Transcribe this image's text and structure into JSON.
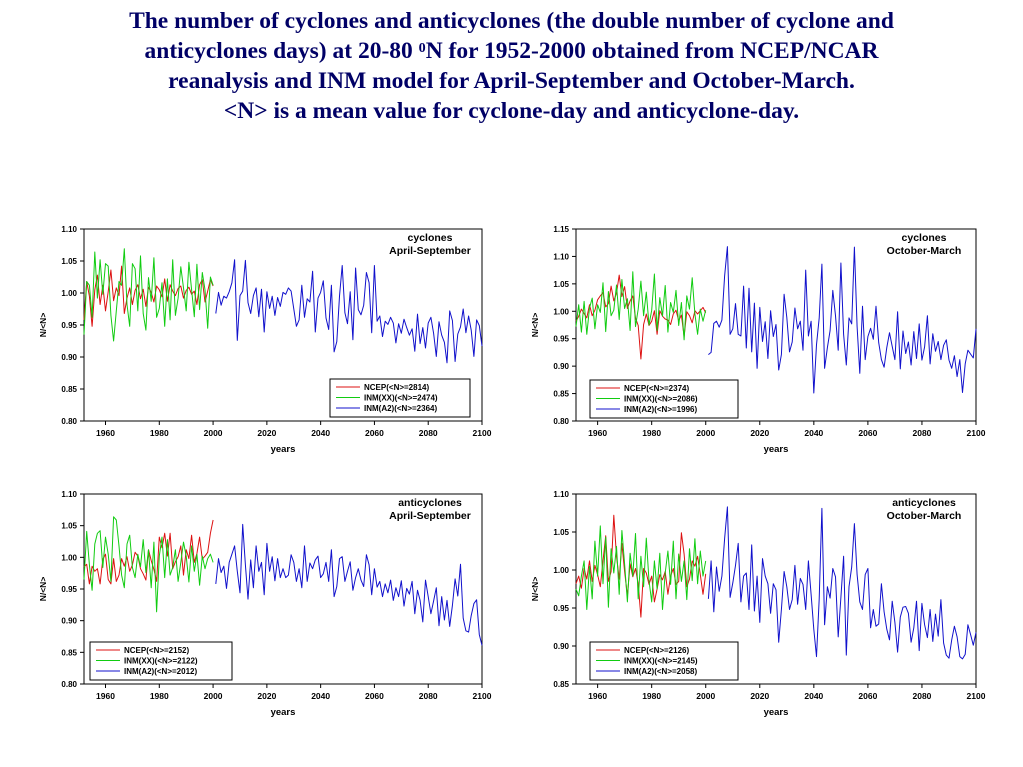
{
  "title": {
    "line1": "The number of cyclones and anticyclones (the double number of cyclone and",
    "line2_pre": "anticyclones days) at 20-80 ",
    "line2_sup": "0",
    "line2_post": "N for 1952-2000 obtained from NCEP/NCAR",
    "line3": "reanalysis and INM model for April-September and October-March.",
    "line4": "<N> is a mean value for cyclone-day and anticyclone-day."
  },
  "colors": {
    "ncep": "#dd1111",
    "inm_xx": "#11cc11",
    "inm_a2": "#1111cc",
    "title": "#000066"
  },
  "chart_data": [
    {
      "type": "line",
      "title": [
        "cyclones",
        "April-September"
      ],
      "xlabel": "years",
      "ylabel": "N/<N>",
      "xlim": [
        1952,
        2100
      ],
      "ylim": [
        0.8,
        1.1
      ],
      "xticks": [
        1960,
        1980,
        2000,
        2020,
        2040,
        2060,
        2080,
        2100
      ],
      "yticks": [
        "0.80",
        "0.85",
        "0.90",
        "0.95",
        "1.00",
        "1.05",
        "1.10"
      ],
      "grid": false,
      "legend_position": "bottom-right",
      "series": [
        {
          "name": "NCEP(<N>=2814)",
          "color_key": "ncep",
          "x_start": 1952,
          "values": [
            0.958,
            1.018,
            0.995,
            0.948,
            1.005,
            1.028,
            0.982,
            1.012,
            0.972,
            1.002,
            1.036,
            0.988,
            1.008,
            0.996,
            1.042,
            0.968,
            0.992,
            1.008,
            0.982,
            1.004,
            1.013,
            0.991,
            1.006,
            0.979,
            1.009,
            1.001,
            0.986,
            1.011,
            1.005,
            0.994,
            1.022,
            0.987,
            1.013,
            1.003,
            0.996,
            1.007,
            1.011,
            0.992,
            1.004,
            1.009,
            0.998,
            1.003,
            0.982,
            1.013,
            1.021,
            0.986,
            1.003,
            1.021,
            1.011
          ]
        },
        {
          "name": "INM(XX)(<N>=2474)",
          "color_key": "inm_xx",
          "x_start": 1952,
          "values": [
            0.935,
            1.018,
            1.012,
            0.962,
            1.064,
            0.992,
            1.052,
            0.998,
            1.046,
            1.042,
            0.965,
            0.925,
            0.972,
            1.018,
            1.012,
            1.069,
            0.982,
            0.948,
            1.046,
            1.038,
            0.972,
            1.058,
            0.968,
            0.942,
            1.024,
            0.987,
            1.055,
            0.962,
            0.976,
            1.016,
            0.948,
            1.022,
            0.958,
            1.052,
            0.965,
            0.992,
            1.041,
            1.008,
            0.972,
            1.048,
            1.005,
            0.963,
            1.045,
            0.974,
            1.032,
            1.005,
            0.945,
            1.025,
            1.012
          ]
        },
        {
          "name": "INM(A2)(<N>=2364)",
          "color_key": "inm_a2",
          "x_start": 2001,
          "values": [
            0.968,
            1.001,
            0.981,
            0.995,
            0.992,
            1.002,
            1.016,
            1.052,
            0.926,
            0.996,
            1.003,
            1.051,
            0.985,
            0.968,
            0.996,
            1.008,
            0.963,
            1.006,
            0.939,
            1.002,
            0.976,
            0.995,
            0.965,
            0.993,
            0.979,
            1.001,
            0.998,
            1.008,
            1.003,
            0.975,
            0.948,
            0.958,
            1.012,
            0.962,
            0.991,
            0.986,
            1.034,
            0.939,
            0.992,
            1.001,
            1.019,
            0.961,
            0.943,
            1.012,
            0.908,
            0.924,
            0.995,
            1.043,
            0.969,
            0.952,
            1.002,
            0.927,
            1.039,
            0.974,
            0.966,
            0.981,
            1.032,
            1.016,
            0.938,
            1.043,
            0.956,
            0.964,
            0.932,
            0.956,
            0.951,
            0.962,
            0.953,
            0.922,
            0.952,
            0.937,
            0.959,
            0.946,
            0.934,
            0.944,
            0.909,
            0.967,
            0.921,
            0.946,
            0.914,
            0.953,
            0.962,
            0.937,
            0.901,
            0.955,
            0.934,
            0.923,
            0.891,
            0.972,
            0.957,
            0.893,
            0.936,
            0.947,
            0.975,
            0.938,
            0.964,
            0.942,
            0.901,
            0.958,
            0.949,
            0.917
          ]
        }
      ]
    },
    {
      "type": "line",
      "title": [
        "cyclones",
        "October-March"
      ],
      "xlabel": "years",
      "ylabel": "N/<N>",
      "xlim": [
        1952,
        2100
      ],
      "ylim": [
        0.8,
        1.15
      ],
      "xticks": [
        1960,
        1980,
        2000,
        2020,
        2040,
        2060,
        2080,
        2100
      ],
      "yticks": [
        "0.80",
        "0.85",
        "0.90",
        "0.95",
        "1.00",
        "1.05",
        "1.10",
        "1.15"
      ],
      "grid": false,
      "legend_position": "bottom-left",
      "series": [
        {
          "name": "NCEP(<N>=2374)",
          "color_key": "ncep",
          "x_start": 1952,
          "values": [
            0.982,
            0.991,
            1.004,
            0.996,
            0.988,
            1.012,
            0.992,
            1.002,
            1.021,
            1.028,
            1.034,
            1.008,
            1.014,
            1.046,
            1.019,
            1.033,
            1.066,
            1.027,
            1.045,
            1.005,
            1.019,
            1.028,
            0.988,
            0.974,
            0.913,
            0.976,
            0.995,
            0.974,
            0.982,
            1.001,
            0.958,
            1.001,
            0.991,
            0.986,
            0.984,
            0.976,
            0.995,
            1.002,
            0.983,
            0.993,
            0.954,
            0.999,
            0.992,
            0.979,
            1.001,
            0.995,
            1.001,
            1.007,
            0.997
          ]
        },
        {
          "name": "INM(XX)(<N>=2086)",
          "color_key": "inm_xx",
          "x_start": 1952,
          "values": [
            0.972,
            1.012,
            0.962,
            1.018,
            0.958,
            1.006,
            1.024,
            0.968,
            1.012,
            0.998,
            1.052,
            0.963,
            1.036,
            0.992,
            1.002,
            1.048,
            0.985,
            1.058,
            1.005,
            1.023,
            0.965,
            1.072,
            0.972,
            1.004,
            1.055,
            0.992,
            1.035,
            0.975,
            1.002,
            1.068,
            0.965,
            1.025,
            0.991,
            1.047,
            0.962,
            1.016,
            0.998,
            1.038,
            0.974,
            1.016,
            0.948,
            1.028,
            1.004,
            1.061,
            0.995,
            0.958,
            1.004,
            0.982,
            1.002
          ]
        },
        {
          "name": "INM(A2)(<N>=1996)",
          "color_key": "inm_a2",
          "x_start": 2001,
          "values": [
            0.921,
            0.925,
            0.978,
            0.982,
            0.971,
            0.984,
            1.064,
            1.118,
            0.958,
            0.968,
            1.014,
            0.958,
            0.955,
            1.046,
            0.933,
            1.042,
            0.926,
            1.015,
            0.896,
            1.007,
            0.945,
            0.981,
            0.914,
            1.001,
            0.954,
            0.976,
            0.893,
            0.921,
            1.031,
            0.989,
            0.926,
            0.944,
            1.006,
            0.968,
            0.982,
            0.929,
            1.075,
            0.955,
            0.982,
            0.851,
            0.939,
            0.988,
            1.086,
            0.896,
            0.934,
            0.965,
            1.038,
            0.992,
            0.929,
            1.088,
            0.958,
            0.902,
            0.988,
            0.977,
            1.117,
            0.972,
            0.887,
            1.009,
            0.912,
            0.954,
            0.969,
            0.949,
            1.009,
            0.943,
            0.912,
            0.898,
            0.934,
            0.961,
            0.936,
            0.912,
            0.999,
            0.895,
            0.964,
            0.923,
            0.944,
            0.902,
            0.963,
            0.914,
            0.977,
            0.911,
            0.935,
            0.992,
            0.904,
            0.959,
            0.927,
            0.945,
            0.912,
            0.938,
            0.948,
            0.911,
            0.896,
            0.919,
            0.881,
            0.912,
            0.852,
            0.904,
            0.929,
            0.922,
            0.915,
            0.968
          ]
        }
      ]
    },
    {
      "type": "line",
      "title": [
        "anticyclones",
        "April-September"
      ],
      "xlabel": "years",
      "ylabel": "N/<N>",
      "xlim": [
        1952,
        2100
      ],
      "ylim": [
        0.8,
        1.1
      ],
      "xticks": [
        1960,
        1980,
        2000,
        2020,
        2040,
        2060,
        2080,
        2100
      ],
      "yticks": [
        "0.80",
        "0.85",
        "0.90",
        "0.95",
        "1.00",
        "1.05",
        "1.10"
      ],
      "grid": false,
      "legend_position": "bottom-left",
      "series": [
        {
          "name": "NCEP(<N>=2152)",
          "color_key": "ncep",
          "x_start": 1952,
          "values": [
            0.985,
            0.989,
            0.958,
            0.986,
            0.978,
            0.982,
            0.958,
            0.997,
            1.005,
            0.965,
            0.958,
            0.998,
            0.962,
            0.972,
            0.998,
            0.986,
            1.001,
            0.978,
            0.988,
            1.008,
            1.002,
            0.982,
            0.974,
            0.964,
            1.012,
            0.995,
            0.981,
            0.962,
            1.032,
            1.015,
            1.038,
            1.002,
            1.038,
            0.982,
            0.993,
            1.001,
            1.018,
            0.972,
            1.012,
            0.998,
            1.035,
            0.992,
            1.006,
            1.032,
            0.997,
            1.002,
            1.008,
            1.038,
            1.059
          ]
        },
        {
          "name": "INM(XX)(<N>=2122)",
          "color_key": "inm_xx",
          "x_start": 1952,
          "values": [
            0.965,
            1.041,
            0.988,
            0.948,
            1.021,
            1.038,
            1.042,
            0.984,
            1.032,
            1.005,
            0.962,
            1.064,
            1.059,
            1.018,
            0.972,
            0.952,
            1.021,
            1.035,
            0.984,
            0.968,
            1.005,
            0.985,
            1.028,
            0.976,
            1.012,
            0.952,
            1.024,
            0.914,
            1.002,
            1.032,
            0.968,
            1.028,
            0.972,
            0.984,
            1.012,
            0.962,
            0.992,
            1.024,
            1.002,
            0.961,
            1.018,
            0.978,
            1.005,
            0.956,
            1.002,
            0.982,
            0.998,
            1.005,
            0.992
          ]
        },
        {
          "name": "INM(A2)(<N>=2012)",
          "color_key": "inm_a2",
          "x_start": 2001,
          "values": [
            0.958,
            0.998,
            0.976,
            0.986,
            0.951,
            0.992,
            1.005,
            1.018,
            0.978,
            0.944,
            1.052,
            0.988,
            0.934,
            0.996,
            0.952,
            1.018,
            0.978,
            0.992,
            0.941,
            1.022,
            0.978,
            1.001,
            0.963,
            0.998,
            0.968,
            0.982,
            0.968,
            0.972,
            1.004,
            0.992,
            0.962,
            0.982,
            0.952,
            1.018,
            0.962,
            0.991,
            0.982,
            0.996,
            1.002,
            0.968,
            0.974,
            0.992,
            0.962,
            1.012,
            0.938,
            0.954,
            0.998,
            1.001,
            0.962,
            0.978,
            0.993,
            0.948,
            0.968,
            0.982,
            0.964,
            0.954,
            1.004,
            0.988,
            0.941,
            0.982,
            0.953,
            0.962,
            0.938,
            0.958,
            0.944,
            0.964,
            0.932,
            0.952,
            0.938,
            0.963,
            0.923,
            0.951,
            0.942,
            0.962,
            0.911,
            0.948,
            0.932,
            0.898,
            0.964,
            0.938,
            0.911,
            0.931,
            0.952,
            0.892,
            0.938,
            0.901,
            0.932,
            0.891,
            0.924,
            0.966,
            0.939,
            0.989,
            0.904,
            0.884,
            0.882,
            0.908,
            0.927,
            0.933,
            0.878,
            0.861
          ]
        }
      ]
    },
    {
      "type": "line",
      "title": [
        "anticyclones",
        "October-March"
      ],
      "xlabel": "years",
      "ylabel": "N/<N>",
      "xlim": [
        1952,
        2100
      ],
      "ylim": [
        0.85,
        1.1
      ],
      "xticks": [
        1960,
        1980,
        2000,
        2020,
        2040,
        2060,
        2080,
        2100
      ],
      "yticks": [
        "0.85",
        "0.90",
        "0.95",
        "1.00",
        "1.05",
        "1.10"
      ],
      "grid": false,
      "legend_position": "bottom-left",
      "series": [
        {
          "name": "NCEP(<N>=2126)",
          "color_key": "ncep",
          "x_start": 1952,
          "values": [
            0.982,
            0.992,
            0.976,
            1.002,
            0.988,
            1.012,
            0.985,
            1.006,
            0.994,
            0.978,
            1.012,
            1.045,
            0.985,
            0.998,
            1.072,
            1.018,
            0.988,
            1.035,
            0.998,
            0.966,
            1.008,
            0.991,
            1.002,
            0.982,
            0.938,
            1.002,
            0.996,
            0.981,
            0.992,
            0.958,
            0.975,
            0.994,
            0.987,
            0.998,
            0.968,
            0.992,
            1.002,
            0.981,
            0.985,
            1.049,
            1.021,
            0.978,
            0.988,
            1.012,
            1.005,
            1.018,
            0.994,
            0.968,
            0.995
          ]
        },
        {
          "name": "INM(XX)(<N>=2145)",
          "color_key": "inm_xx",
          "x_start": 1952,
          "values": [
            0.975,
            0.966,
            0.992,
            1.012,
            0.948,
            1.005,
            0.962,
            1.038,
            0.992,
            1.058,
            0.982,
            1.043,
            0.951,
            1.028,
            0.996,
            1.031,
            0.968,
            1.052,
            1.008,
            0.958,
            1.022,
            0.992,
            1.048,
            0.962,
            1.018,
            0.978,
            1.042,
            0.986,
            0.958,
            1.012,
            0.975,
            1.022,
            0.948,
            0.996,
            1.025,
            0.981,
            1.038,
            0.962,
            1.021,
            0.985,
            1.012,
            0.961,
            1.028,
            0.986,
            1.041,
            0.982,
            1.025,
            0.992,
            1.012
          ]
        },
        {
          "name": "INM(A2)(<N>=2058)",
          "color_key": "inm_a2",
          "x_start": 2001,
          "values": [
            0.962,
            1.012,
            0.945,
            1.004,
            0.972,
            0.992,
            1.041,
            1.083,
            0.964,
            0.983,
            1.006,
            1.035,
            0.958,
            0.992,
            0.996,
            0.948,
            1.033,
            0.946,
            0.992,
            0.931,
            1.015,
            0.992,
            0.982,
            0.943,
            0.982,
            0.974,
            0.905,
            0.948,
            0.998,
            0.978,
            0.948,
            0.961,
            1.006,
            0.955,
            0.989,
            0.981,
            0.948,
            1.012,
            0.968,
            0.922,
            0.886,
            0.962,
            1.081,
            0.928,
            0.978,
            0.963,
            1.002,
            0.991,
            0.912,
            0.964,
            1.018,
            0.888,
            0.978,
            1.004,
            1.061,
            0.994,
            0.958,
            0.948,
            0.994,
            1.002,
            0.924,
            0.948,
            0.926,
            0.929,
            0.982,
            0.945,
            0.922,
            0.908,
            0.959,
            0.931,
            0.892,
            0.938,
            0.951,
            0.952,
            0.943,
            0.905,
            0.924,
            0.959,
            0.894,
            0.956,
            0.928,
            0.911,
            0.948,
            0.906,
            0.942,
            0.913,
            0.961,
            0.904,
            0.888,
            0.884,
            0.908,
            0.926,
            0.912,
            0.886,
            0.883,
            0.889,
            0.928,
            0.915,
            0.901,
            0.918
          ]
        }
      ]
    }
  ]
}
